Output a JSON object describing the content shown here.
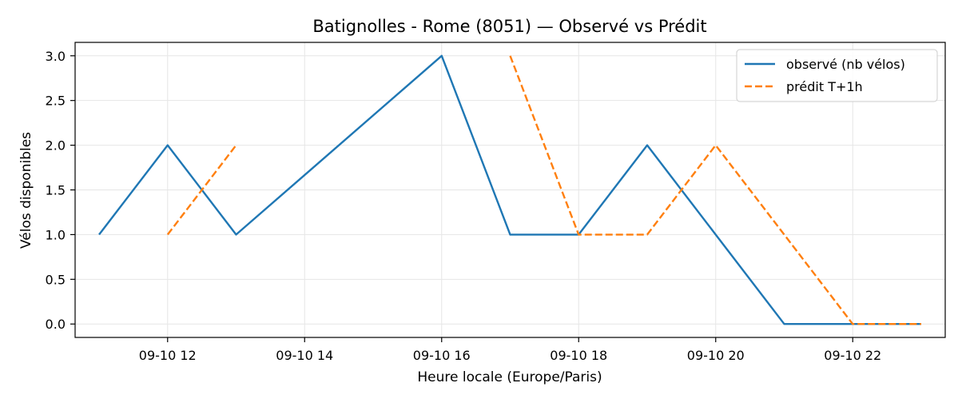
{
  "chart_data": {
    "type": "line",
    "title": "Batignolles - Rome (8051) — Observé vs Prédit",
    "xlabel": "Heure locale (Europe/Paris)",
    "ylabel": "Vélos disponibles",
    "x_ticks": [
      "09-10 12",
      "09-10 14",
      "09-10 16",
      "09-10 18",
      "09-10 20",
      "09-10 22"
    ],
    "y_ticks": [
      "0.0",
      "0.5",
      "1.0",
      "1.5",
      "2.0",
      "2.5",
      "3.0"
    ],
    "xlim": [
      "2025-09-10 10:39",
      "2025-09-10 23:21"
    ],
    "ylim": [
      -0.15,
      3.15
    ],
    "grid": true,
    "legend_position": "top-right",
    "series": [
      {
        "name": "observé (nb vélos)",
        "color": "#1f77b4",
        "style": "solid",
        "points": [
          {
            "x": "2025-09-10 11:00",
            "y": 1
          },
          {
            "x": "2025-09-10 12:00",
            "y": 2
          },
          {
            "x": "2025-09-10 13:00",
            "y": 1
          },
          {
            "x": "2025-09-10 16:00",
            "y": 3
          },
          {
            "x": "2025-09-10 17:00",
            "y": 1
          },
          {
            "x": "2025-09-10 18:00",
            "y": 1
          },
          {
            "x": "2025-09-10 19:00",
            "y": 2
          },
          {
            "x": "2025-09-10 20:00",
            "y": 1
          },
          {
            "x": "2025-09-10 21:00",
            "y": 0
          },
          {
            "x": "2025-09-10 22:00",
            "y": 0
          },
          {
            "x": "2025-09-10 23:00",
            "y": 0
          }
        ]
      },
      {
        "name": "prédit T+1h",
        "color": "#ff7f0e",
        "style": "dashed",
        "points": [
          {
            "x": "2025-09-10 12:00",
            "y": 1
          },
          {
            "x": "2025-09-10 13:00",
            "y": 2
          },
          {
            "x": "2025-09-10 14:00",
            "y": null
          },
          {
            "x": "2025-09-10 17:00",
            "y": 3
          },
          {
            "x": "2025-09-10 18:00",
            "y": 1
          },
          {
            "x": "2025-09-10 19:00",
            "y": 1
          },
          {
            "x": "2025-09-10 20:00",
            "y": 2
          },
          {
            "x": "2025-09-10 21:00",
            "y": 1
          },
          {
            "x": "2025-09-10 22:00",
            "y": 0
          },
          {
            "x": "2025-09-10 23:00",
            "y": 0
          }
        ]
      }
    ]
  }
}
